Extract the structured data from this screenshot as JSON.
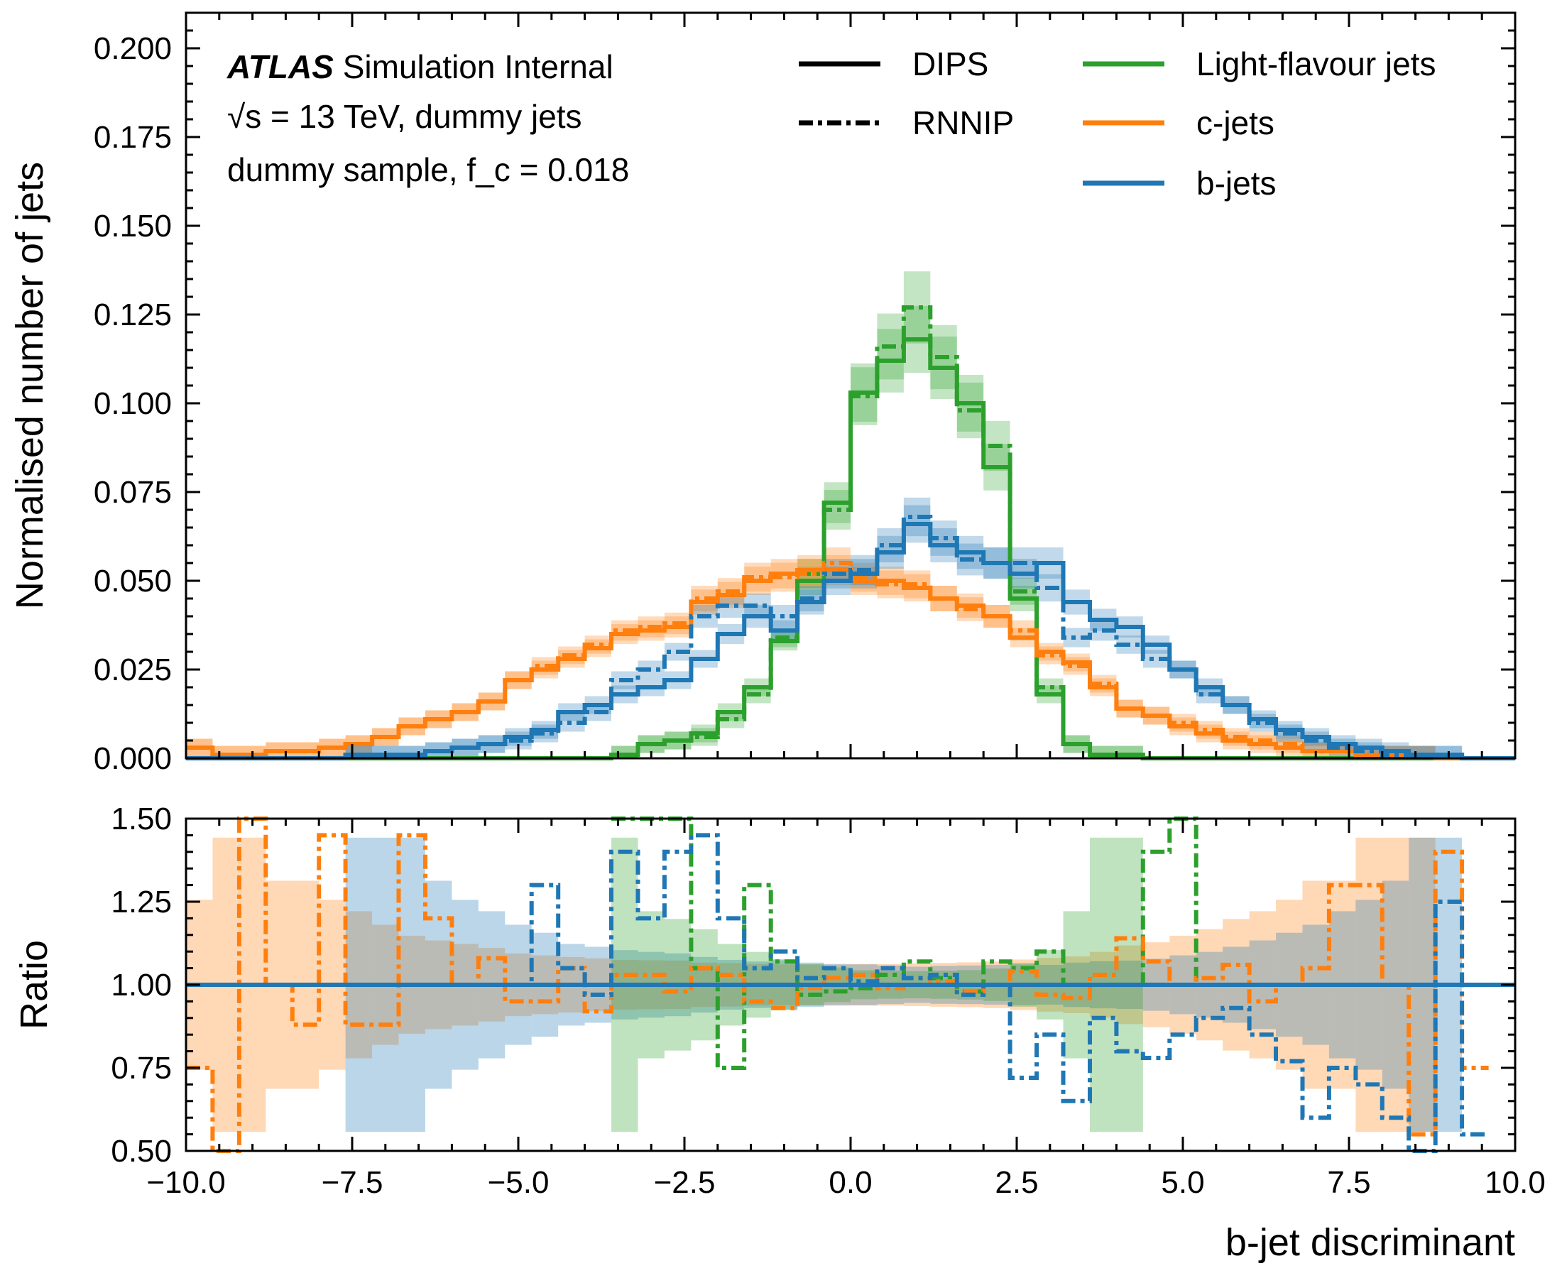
{
  "annotation": {
    "atlas": "ATLAS",
    "line1_rest": "Simulation Internal",
    "line2": "√s = 13 TeV, dummy jets",
    "line3": "dummy sample, f_c = 0.018"
  },
  "legend": {
    "styles": [
      {
        "label": "DIPS",
        "dash": "solid"
      },
      {
        "label": "RNNIP",
        "dash": "dashdot"
      }
    ],
    "flavours": [
      {
        "label": "Light-flavour jets",
        "color": "#2ca02c"
      },
      {
        "label": "c-jets",
        "color": "#ff7f0e"
      },
      {
        "label": "b-jets",
        "color": "#1f77b4"
      }
    ]
  },
  "chart_data": [
    {
      "type": "line",
      "panel": "main",
      "xlabel": "",
      "ylabel": "Normalised number of jets",
      "xlim": [
        -10,
        10
      ],
      "ylim": [
        0,
        0.21
      ],
      "y_ticks": [
        "0.000",
        "0.025",
        "0.050",
        "0.075",
        "0.100",
        "0.125",
        "0.150",
        "0.175",
        "0.200"
      ],
      "bin_edges": [
        -10.0,
        -9.6,
        -9.2,
        -8.8,
        -8.4,
        -8.0,
        -7.6,
        -7.2,
        -6.8,
        -6.4,
        -6.0,
        -5.6,
        -5.2,
        -4.8,
        -4.4,
        -4.0,
        -3.6,
        -3.2,
        -2.8,
        -2.4,
        -2.0,
        -1.6,
        -1.2,
        -0.8,
        -0.4,
        0.0,
        0.4,
        0.8,
        1.2,
        1.6,
        2.0,
        2.4,
        2.8,
        3.2,
        3.6,
        4.0,
        4.4,
        4.8,
        5.2,
        5.6,
        6.0,
        6.4,
        6.8,
        7.2,
        7.6,
        8.0,
        8.4,
        8.8,
        9.2,
        9.6,
        10.0
      ],
      "series": [
        {
          "flavour": "Light-flavour jets",
          "style": "DIPS",
          "color": "#2ca02c",
          "values": [
            0,
            0,
            0,
            0,
            0,
            0,
            0,
            0,
            0,
            0,
            0,
            0,
            0,
            0,
            0,
            0,
            0.001,
            0.004,
            0.005,
            0.007,
            0.013,
            0.02,
            0.033,
            0.05,
            0.072,
            0.103,
            0.112,
            0.118,
            0.11,
            0.1,
            0.082,
            0.045,
            0.018,
            0.004,
            0.001,
            0.001,
            0,
            0,
            0,
            0,
            0,
            0,
            0,
            0,
            0,
            0,
            0,
            0,
            0,
            0
          ]
        },
        {
          "flavour": "Light-flavour jets",
          "style": "RNNIP",
          "color": "#2ca02c",
          "values": [
            0,
            0,
            0,
            0,
            0,
            0,
            0,
            0,
            0,
            0,
            0,
            0,
            0,
            0,
            0,
            0,
            0.001,
            0.004,
            0.005,
            0.006,
            0.011,
            0.018,
            0.034,
            0.052,
            0.07,
            0.102,
            0.116,
            0.127,
            0.113,
            0.098,
            0.088,
            0.047,
            0.02,
            0.004,
            0.001,
            0.001,
            0,
            0,
            0,
            0,
            0,
            0,
            0,
            0,
            0,
            0,
            0,
            0,
            0,
            0
          ]
        },
        {
          "flavour": "c-jets",
          "style": "DIPS",
          "color": "#ff7f0e",
          "values": [
            0.003,
            0.001,
            0.001,
            0.002,
            0.002,
            0.003,
            0.004,
            0.006,
            0.009,
            0.011,
            0.013,
            0.016,
            0.022,
            0.025,
            0.028,
            0.031,
            0.035,
            0.036,
            0.037,
            0.044,
            0.046,
            0.05,
            0.052,
            0.053,
            0.053,
            0.05,
            0.05,
            0.048,
            0.045,
            0.043,
            0.04,
            0.034,
            0.03,
            0.027,
            0.02,
            0.014,
            0.012,
            0.009,
            0.007,
            0.005,
            0.004,
            0.003,
            0.002,
            0.002,
            0.001,
            0.001,
            0.001,
            0,
            0,
            0
          ]
        },
        {
          "flavour": "c-jets",
          "style": "RNNIP",
          "color": "#ff7f0e",
          "values": [
            0.003,
            0.001,
            0.001,
            0.002,
            0.002,
            0.003,
            0.004,
            0.006,
            0.009,
            0.011,
            0.013,
            0.016,
            0.022,
            0.026,
            0.029,
            0.032,
            0.036,
            0.037,
            0.038,
            0.045,
            0.047,
            0.051,
            0.051,
            0.052,
            0.055,
            0.051,
            0.049,
            0.049,
            0.045,
            0.042,
            0.04,
            0.036,
            0.029,
            0.026,
            0.021,
            0.014,
            0.012,
            0.01,
            0.008,
            0.006,
            0.005,
            0.004,
            0.002,
            0.002,
            0.001,
            0.001,
            0.001,
            0,
            0,
            0
          ]
        },
        {
          "flavour": "b-jets",
          "style": "DIPS",
          "color": "#1f77b4",
          "values": [
            0,
            0,
            0,
            0,
            0,
            0,
            0.001,
            0.001,
            0.001,
            0.002,
            0.003,
            0.004,
            0.006,
            0.008,
            0.013,
            0.015,
            0.018,
            0.02,
            0.022,
            0.028,
            0.035,
            0.04,
            0.036,
            0.044,
            0.05,
            0.052,
            0.058,
            0.066,
            0.06,
            0.058,
            0.055,
            0.052,
            0.055,
            0.044,
            0.039,
            0.037,
            0.032,
            0.025,
            0.02,
            0.015,
            0.011,
            0.008,
            0.006,
            0.004,
            0.003,
            0.002,
            0.001,
            0.001,
            0,
            0
          ]
        },
        {
          "flavour": "b-jets",
          "style": "RNNIP",
          "color": "#1f77b4",
          "values": [
            0,
            0,
            0,
            0,
            0,
            0,
            0.001,
            0.001,
            0.001,
            0.002,
            0.003,
            0.004,
            0.005,
            0.007,
            0.01,
            0.013,
            0.022,
            0.025,
            0.03,
            0.04,
            0.043,
            0.043,
            0.04,
            0.045,
            0.052,
            0.053,
            0.06,
            0.068,
            0.062,
            0.056,
            0.055,
            0.055,
            0.048,
            0.034,
            0.036,
            0.032,
            0.028,
            0.025,
            0.018,
            0.015,
            0.01,
            0.007,
            0.005,
            0.003,
            0.002,
            0.001,
            0.001,
            0.001,
            0,
            0
          ]
        }
      ],
      "grid": false,
      "legend_position": "top-right"
    },
    {
      "type": "line",
      "panel": "ratio",
      "xlabel": "b-jet discriminant",
      "ylabel": "Ratio",
      "xlim": [
        -10,
        10
      ],
      "ylim": [
        0.5,
        1.5
      ],
      "x_ticks": [
        "−10.0",
        "−7.5",
        "−5.0",
        "−2.5",
        "0.0",
        "2.5",
        "5.0",
        "7.5",
        "10.0"
      ],
      "y_ticks": [
        "0.50",
        "0.75",
        "1.00",
        "1.25",
        "1.50"
      ],
      "reference": 1.0,
      "series": [
        {
          "flavour": "Light-flavour jets",
          "style": "RNNIP",
          "color": "#2ca02c",
          "values": [
            null,
            null,
            null,
            null,
            null,
            null,
            null,
            null,
            null,
            null,
            null,
            null,
            null,
            null,
            null,
            null,
            1.6,
            1.6,
            1.6,
            1.05,
            0.75,
            1.3,
            1.07,
            0.97,
            0.98,
            0.99,
            1.03,
            1.07,
            1.02,
            0.98,
            1.07,
            1.05,
            1.1,
            1.0,
            1.0,
            1.0,
            1.4,
            1.5,
            1.0,
            1.0,
            null,
            null,
            null,
            null,
            null,
            null,
            null,
            null,
            null,
            null
          ]
        },
        {
          "flavour": "c-jets",
          "style": "RNNIP",
          "color": "#ff7f0e",
          "values": [
            0.75,
            0.5,
            1.5,
            1.0,
            0.88,
            1.45,
            0.88,
            0.88,
            1.45,
            1.2,
            1.0,
            1.08,
            0.95,
            0.95,
            1.05,
            0.92,
            1.03,
            1.03,
            0.98,
            1.05,
            1.03,
            0.95,
            0.93,
            0.99,
            1.02,
            1.03,
            0.99,
            1.0,
            1.01,
            0.98,
            1.0,
            1.04,
            0.97,
            0.96,
            1.03,
            1.14,
            1.07,
            1.0,
            1.02,
            1.06,
            0.95,
            1.0,
            1.05,
            1.3,
            1.3,
            1.0,
            0.55,
            1.4,
            0.75,
            null
          ]
        },
        {
          "flavour": "b-jets",
          "style": "RNNIP",
          "color": "#1f77b4",
          "values": [
            null,
            null,
            null,
            null,
            null,
            null,
            1.0,
            1.0,
            1.0,
            1.0,
            1.0,
            1.0,
            1.0,
            1.3,
            1.05,
            0.97,
            1.4,
            1.2,
            1.4,
            1.45,
            1.2,
            1.05,
            1.1,
            1.02,
            1.05,
            1.01,
            1.05,
            1.02,
            1.03,
            0.97,
            1.0,
            0.72,
            0.85,
            0.65,
            0.9,
            0.8,
            0.78,
            0.85,
            0.9,
            0.93,
            0.85,
            0.77,
            0.6,
            0.75,
            0.7,
            0.6,
            0.5,
            1.25,
            0.55,
            null
          ]
        },
        {
          "flavour": "b-jets",
          "style": "DIPS",
          "color": "#1f77b4",
          "values": [
            1,
            1,
            1,
            1,
            1,
            1,
            1,
            1,
            1,
            1,
            1,
            1,
            1,
            1,
            1,
            1,
            1,
            1,
            1,
            1,
            1,
            1,
            1,
            1,
            1,
            1,
            1,
            1,
            1,
            1,
            1,
            1,
            1,
            1,
            1,
            1,
            1,
            1,
            1,
            1,
            1,
            1,
            1,
            1,
            1,
            1,
            1,
            1,
            1,
            1
          ]
        }
      ],
      "grid": false
    }
  ]
}
